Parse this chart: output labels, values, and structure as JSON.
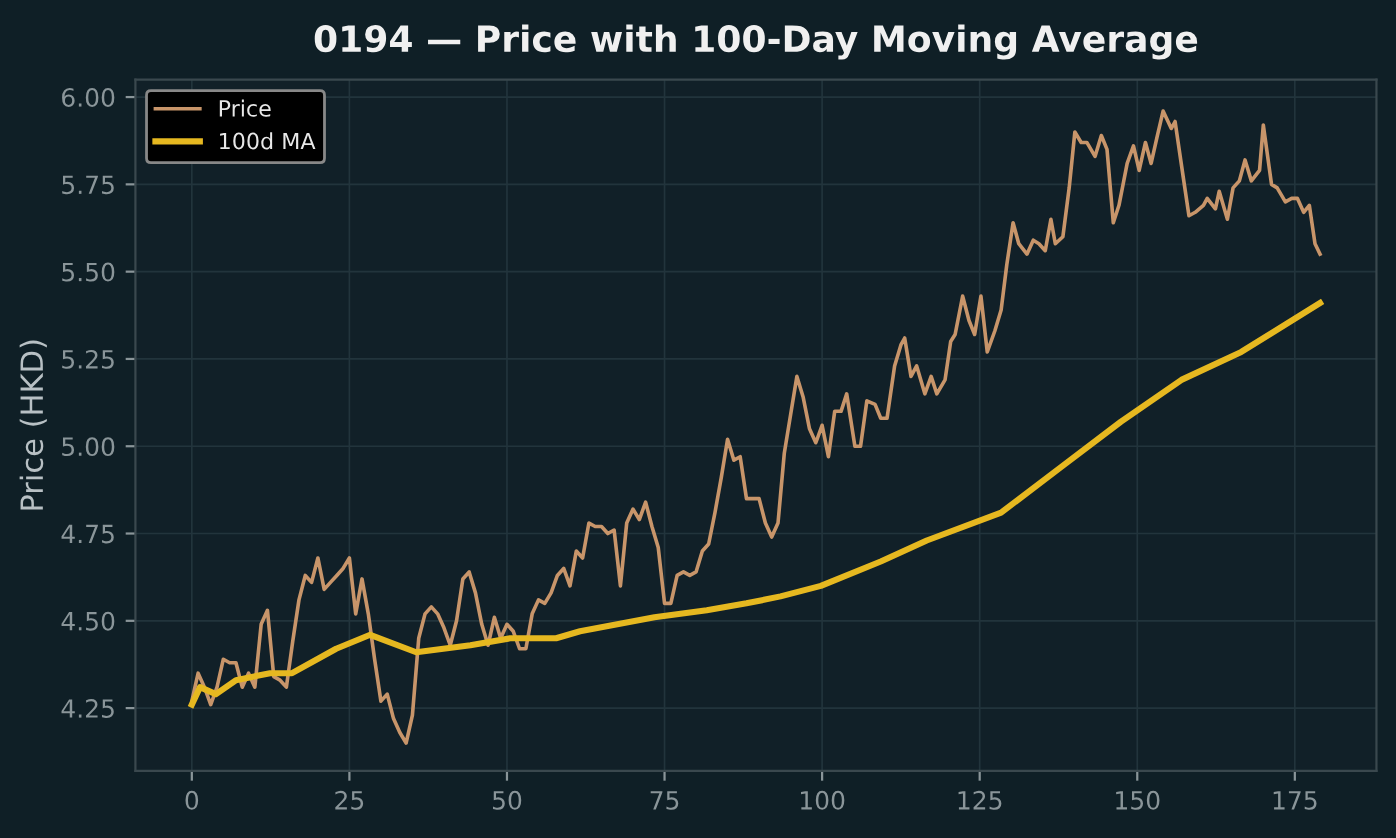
{
  "chart_data": {
    "type": "line",
    "title": "0194 — Price with 100-Day Moving Average",
    "ylabel": "Price (HKD)",
    "xlim": [
      -8.95,
      187.95
    ],
    "ylim": [
      4.07,
      6.05
    ],
    "xticks": [
      0,
      25,
      50,
      75,
      100,
      125,
      150,
      175
    ],
    "yticks": [
      {
        "value": 4.25,
        "label": "4.25"
      },
      {
        "value": 4.5,
        "label": "4.50"
      },
      {
        "value": 4.75,
        "label": "4.75"
      },
      {
        "value": 5.0,
        "label": "5.00"
      },
      {
        "value": 5.25,
        "label": "5.25"
      },
      {
        "value": 5.5,
        "label": "5.50"
      },
      {
        "value": 5.75,
        "label": "5.75"
      },
      {
        "value": 6.0,
        "label": "6.00"
      }
    ],
    "grid": true,
    "legend": "top left",
    "series": [
      {
        "name": "Price",
        "color": "#c8956a",
        "x": [
          0,
          1,
          2,
          3,
          4,
          5,
          6,
          7,
          8,
          9,
          10,
          11,
          12,
          13,
          14,
          15,
          16,
          17,
          18,
          19,
          20,
          21,
          22,
          23,
          24,
          25,
          26,
          27,
          28,
          29,
          30,
          31,
          32,
          33,
          34,
          35,
          36,
          37,
          38,
          39,
          40,
          41,
          42,
          43,
          44,
          45,
          46,
          47,
          48,
          49,
          50,
          51,
          52,
          53,
          54,
          55,
          56,
          57,
          58,
          59,
          60,
          61,
          62,
          63,
          64,
          65,
          66,
          67,
          68,
          69,
          70,
          71,
          72,
          73,
          74,
          75,
          76,
          77,
          78,
          79,
          80,
          81,
          82,
          83,
          84,
          85,
          86,
          87,
          88,
          89,
          90,
          91,
          92,
          93,
          94,
          95,
          96,
          97,
          98,
          99,
          100,
          101,
          102,
          103.0,
          103.9,
          105.2,
          106.1,
          107.1,
          108.4,
          109.3,
          110.3,
          111.5,
          112.5,
          113.1,
          114.1,
          115.0,
          116.3,
          117.3,
          118.2,
          119.5,
          120.4,
          121.1,
          122.3,
          123.3,
          124.2,
          125.2,
          126.2,
          127.4,
          128.4,
          129.3,
          130.3,
          131.2,
          132.5,
          133.5,
          134.4,
          135.4,
          136.3,
          137.0,
          138.2,
          139.2,
          140.1,
          141.1,
          142.0,
          143.3,
          144.3,
          145.2,
          146.2,
          147.1,
          148.4,
          149.4,
          150.3,
          151.3,
          152.2,
          153.2,
          154.1,
          155.4,
          156.0,
          157.3,
          158.2,
          159.2,
          160.5,
          161.1,
          162.4,
          163.0,
          164.3,
          165.2,
          166.2,
          167.1,
          168.1,
          169.4,
          170.0,
          171.3,
          172.2,
          173.5,
          174.5,
          175.4,
          176.4,
          177.3,
          178.2,
          179
        ],
        "values": [
          4.27,
          4.35,
          4.31,
          4.26,
          4.31,
          4.39,
          4.38,
          4.38,
          4.31,
          4.35,
          4.31,
          4.49,
          4.53,
          4.34,
          4.33,
          4.31,
          4.44,
          4.56,
          4.63,
          4.61,
          4.68,
          4.59,
          4.61,
          4.63,
          4.65,
          4.68,
          4.52,
          4.62,
          4.52,
          4.39,
          4.27,
          4.29,
          4.22,
          4.18,
          4.15,
          4.23,
          4.45,
          4.52,
          4.54,
          4.52,
          4.48,
          4.43,
          4.5,
          4.62,
          4.64,
          4.58,
          4.49,
          4.43,
          4.51,
          4.45,
          4.49,
          4.47,
          4.42,
          4.42,
          4.52,
          4.56,
          4.55,
          4.58,
          4.63,
          4.65,
          4.6,
          4.7,
          4.68,
          4.78,
          4.77,
          4.77,
          4.75,
          4.76,
          4.6,
          4.78,
          4.82,
          4.79,
          4.84,
          4.77,
          4.71,
          4.55,
          4.55,
          4.63,
          4.64,
          4.63,
          4.64,
          4.7,
          4.72,
          4.81,
          4.91,
          5.02,
          4.96,
          4.97,
          4.85,
          4.85,
          4.85,
          4.78,
          4.74,
          4.78,
          4.98,
          5.09,
          5.2,
          5.14,
          5.05,
          5.01,
          5.06,
          4.97,
          5.1,
          5.1,
          5.15,
          5.0,
          5.0,
          5.13,
          5.12,
          5.08,
          5.08,
          5.23,
          5.29,
          5.31,
          5.2,
          5.23,
          5.15,
          5.2,
          5.15,
          5.19,
          5.3,
          5.32,
          5.43,
          5.36,
          5.32,
          5.43,
          5.27,
          5.33,
          5.39,
          5.52,
          5.64,
          5.58,
          5.55,
          5.59,
          5.58,
          5.56,
          5.65,
          5.58,
          5.6,
          5.74,
          5.9,
          5.87,
          5.87,
          5.83,
          5.89,
          5.85,
          5.64,
          5.69,
          5.81,
          5.86,
          5.79,
          5.87,
          5.81,
          5.89,
          5.96,
          5.91,
          5.93,
          5.77,
          5.66,
          5.67,
          5.69,
          5.71,
          5.68,
          5.73,
          5.65,
          5.74,
          5.76,
          5.82,
          5.76,
          5.79,
          5.92,
          5.75,
          5.74,
          5.7,
          5.71,
          5.71,
          5.67,
          5.69,
          5.58,
          5.55
        ]
      },
      {
        "name": "100d MA",
        "color": "#e6b820",
        "x": [
          0,
          1.3,
          3.8,
          7,
          12.4,
          15.9,
          22.9,
          28.3,
          35.6,
          44.2,
          50.5,
          57.8,
          61.6,
          73.4,
          81.7,
          88,
          93.4,
          99.8,
          109.3,
          116.6,
          128.4,
          137.9,
          147.4,
          157,
          166.5,
          179
        ],
        "values": [
          4.26,
          4.31,
          4.29,
          4.33,
          4.35,
          4.35,
          4.42,
          4.46,
          4.41,
          4.43,
          4.45,
          4.45,
          4.47,
          4.51,
          4.53,
          4.55,
          4.57,
          4.6,
          4.67,
          4.73,
          4.81,
          4.94,
          5.07,
          5.19,
          5.27,
          5.41
        ]
      }
    ]
  }
}
